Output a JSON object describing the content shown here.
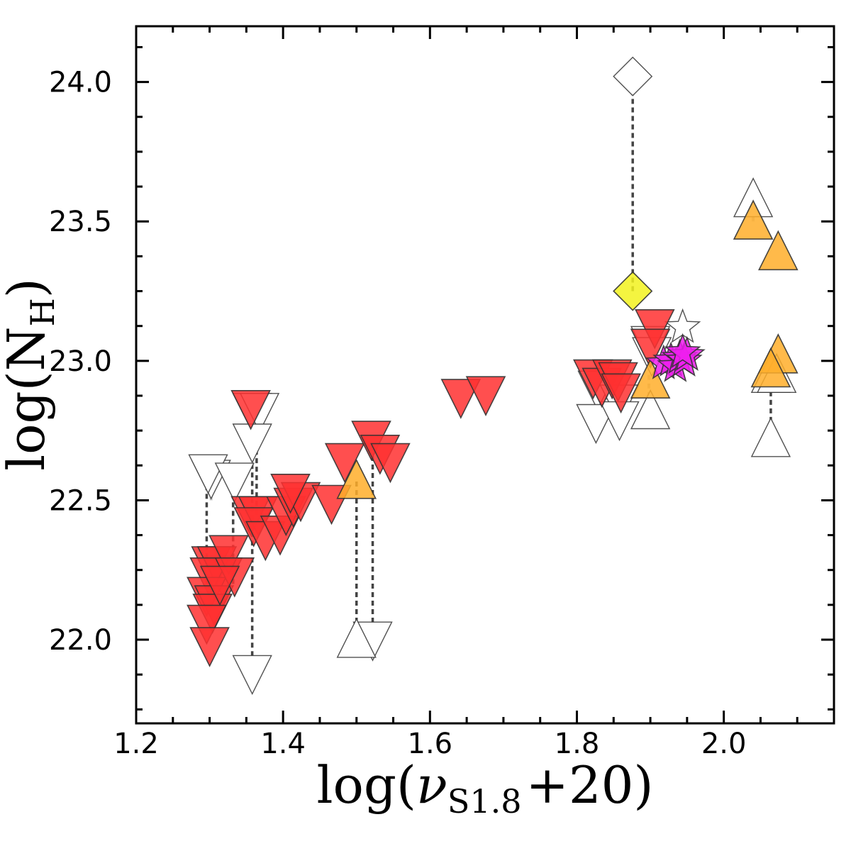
{
  "chart_data": {
    "type": "scatter",
    "title": "",
    "xlabel_main": "log(",
    "xlabel_symbol": "ν",
    "xlabel_sub": "S1.8",
    "xlabel_tail": "+20)",
    "ylabel_main": "log(N",
    "ylabel_sub": "H",
    "ylabel_tail": ")",
    "xlim": [
      1.2,
      2.15
    ],
    "ylim": [
      21.7,
      24.2
    ],
    "x_ticks": [
      1.2,
      1.4,
      1.6,
      1.8,
      2.0
    ],
    "x_tick_labels": [
      "1.2",
      "1.4",
      "1.6",
      "1.8",
      "2.0"
    ],
    "y_ticks": [
      22.0,
      22.5,
      23.0,
      23.5,
      24.0
    ],
    "y_tick_labels": [
      "22.0",
      "22.5",
      "23.0",
      "23.5",
      "24.0"
    ],
    "grid": false,
    "colors": {
      "red": "#ff3030",
      "orange": "#ffae2a",
      "yellow": "#f2f21e",
      "magenta": "#ee1fee",
      "open": "#ffffff",
      "edge": "#333333",
      "connector": "#444444",
      "light_connector": "#c8c8c8"
    },
    "connectors": [
      {
        "x": 1.876,
        "y1": 23.25,
        "y2": 24.02,
        "style": "dark"
      },
      {
        "x": 1.296,
        "y1": 22.2,
        "y2": 22.58,
        "style": "dark"
      },
      {
        "x": 1.332,
        "y1": 22.2,
        "y2": 22.56,
        "style": "dark"
      },
      {
        "x": 1.358,
        "y1": 21.88,
        "y2": 22.82,
        "style": "dark"
      },
      {
        "x": 1.364,
        "y1": 22.45,
        "y2": 22.8,
        "style": "dark"
      },
      {
        "x": 1.5,
        "y1": 22.0,
        "y2": 22.57,
        "style": "dark"
      },
      {
        "x": 1.522,
        "y1": 22.0,
        "y2": 22.66,
        "style": "dark"
      },
      {
        "x": 2.064,
        "y1": 22.72,
        "y2": 22.95,
        "style": "dark"
      },
      {
        "x": 2.04,
        "y1": 23.5,
        "y2": 23.6,
        "style": "light"
      },
      {
        "x": 2.064,
        "y1": 22.93,
        "y2": 23.0,
        "style": "light"
      },
      {
        "x": 1.84,
        "y1": 22.83,
        "y2": 22.93,
        "style": "light"
      },
      {
        "x": 1.828,
        "y1": 22.78,
        "y2": 22.9,
        "style": "light"
      },
      {
        "x": 1.898,
        "y1": 22.84,
        "y2": 22.95,
        "style": "light"
      },
      {
        "x": 1.36,
        "y1": 21.86,
        "y2": 21.92,
        "style": "light"
      },
      {
        "x": 1.302,
        "y1": 22.5,
        "y2": 22.58,
        "style": "light"
      }
    ],
    "series": [
      {
        "name": "open-down-triangles",
        "marker": "triangle-down",
        "filled": false,
        "points": [
          [
            1.302,
            22.58
          ],
          [
            1.298,
            22.6
          ],
          [
            1.334,
            22.57
          ],
          [
            1.358,
            22.82
          ],
          [
            1.368,
            22.82
          ],
          [
            1.358,
            22.71
          ],
          [
            1.358,
            21.88
          ],
          [
            1.522,
            22.0
          ],
          [
            1.828,
            22.9
          ],
          [
            1.826,
            22.78
          ],
          [
            1.858,
            22.85
          ],
          [
            1.858,
            22.79
          ],
          [
            1.9,
            23.06
          ],
          [
            1.902,
            23.02
          ]
        ]
      },
      {
        "name": "open-up-triangles",
        "marker": "triangle-up",
        "filled": false,
        "points": [
          [
            1.5,
            22.0
          ],
          [
            1.9,
            22.82
          ],
          [
            2.04,
            23.58
          ],
          [
            2.064,
            22.95
          ],
          [
            2.072,
            22.95
          ],
          [
            2.064,
            22.72
          ]
        ]
      },
      {
        "name": "open-diamond",
        "marker": "diamond",
        "filled": false,
        "points": [
          [
            1.876,
            24.02
          ]
        ]
      },
      {
        "name": "open-star",
        "marker": "star",
        "filled": false,
        "points": [
          [
            1.944,
            23.12
          ]
        ]
      },
      {
        "name": "red-down-triangles",
        "marker": "triangle-down",
        "filled": true,
        "color": "red",
        "points": [
          [
            1.302,
            22.27
          ],
          [
            1.31,
            22.27
          ],
          [
            1.318,
            22.23
          ],
          [
            1.3,
            22.23
          ],
          [
            1.296,
            22.16
          ],
          [
            1.306,
            22.13
          ],
          [
            1.304,
            22.1
          ],
          [
            1.296,
            22.06
          ],
          [
            1.3,
            21.98
          ],
          [
            1.326,
            22.31
          ],
          [
            1.334,
            22.23
          ],
          [
            1.314,
            22.2
          ],
          [
            1.356,
            22.83
          ],
          [
            1.356,
            22.45
          ],
          [
            1.366,
            22.45
          ],
          [
            1.36,
            22.41
          ],
          [
            1.376,
            22.36
          ],
          [
            1.396,
            22.38
          ],
          [
            1.404,
            22.45
          ],
          [
            1.414,
            22.48
          ],
          [
            1.424,
            22.5
          ],
          [
            1.41,
            22.53
          ],
          [
            1.466,
            22.49
          ],
          [
            1.484,
            22.64
          ],
          [
            1.52,
            22.72
          ],
          [
            1.532,
            22.67
          ],
          [
            1.546,
            22.64
          ],
          [
            1.642,
            22.87
          ],
          [
            1.676,
            22.88
          ],
          [
            1.822,
            22.94
          ],
          [
            1.834,
            22.91
          ],
          [
            1.848,
            22.94
          ],
          [
            1.856,
            22.93
          ],
          [
            1.86,
            22.89
          ],
          [
            1.906,
            23.12
          ],
          [
            1.9,
            23.05
          ]
        ]
      },
      {
        "name": "orange-up-triangles",
        "marker": "triangle-up",
        "filled": true,
        "color": "orange",
        "points": [
          [
            1.5,
            22.57
          ],
          [
            1.9,
            22.93
          ],
          [
            2.04,
            23.5
          ],
          [
            2.074,
            23.39
          ],
          [
            2.074,
            23.02
          ],
          [
            2.064,
            22.97
          ]
        ]
      },
      {
        "name": "yellow-diamond",
        "marker": "diamond",
        "filled": true,
        "color": "yellow",
        "points": [
          [
            1.876,
            23.25
          ]
        ]
      },
      {
        "name": "magenta-stars",
        "marker": "star",
        "filled": true,
        "color": "magenta",
        "points": [
          [
            1.918,
            22.99
          ],
          [
            1.928,
            23.0
          ],
          [
            1.934,
            22.98
          ],
          [
            1.94,
            23.01
          ],
          [
            1.946,
            23.0
          ],
          [
            1.95,
            23.02
          ],
          [
            1.944,
            23.03
          ]
        ]
      }
    ]
  }
}
